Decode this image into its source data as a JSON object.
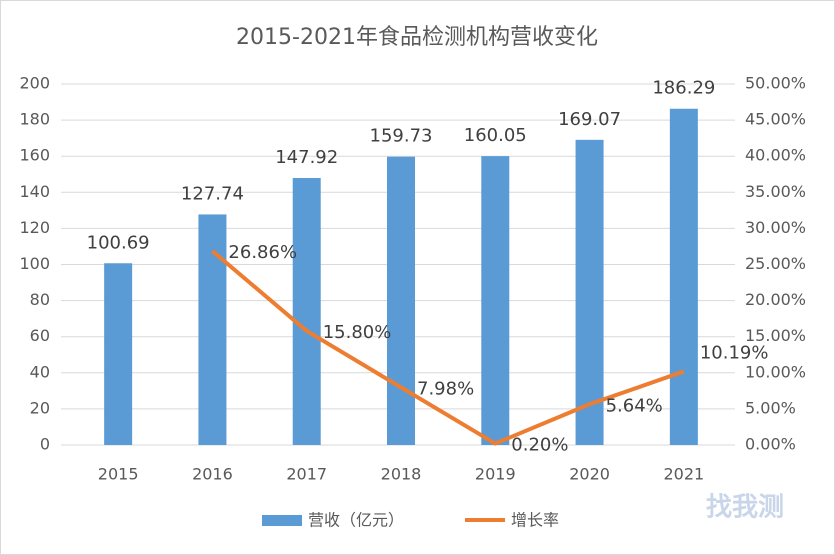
{
  "chart_data": {
    "type": "bar-line",
    "title": "2015-2021年食品检测机构营收变化",
    "categories": [
      "2015",
      "2016",
      "2017",
      "2018",
      "2019",
      "2020",
      "2021"
    ],
    "series": [
      {
        "name": "营收（亿元）",
        "color": "#5b9bd5",
        "type": "bar",
        "values": [
          100.69,
          127.74,
          147.92,
          159.73,
          160.05,
          169.07,
          186.29
        ]
      },
      {
        "name": "增长率",
        "color": "#ed7d31",
        "type": "line",
        "axis": "y2",
        "values": [
          null,
          26.86,
          15.8,
          7.98,
          0.2,
          5.64,
          10.19
        ],
        "value_labels": [
          null,
          "26.86%",
          "15.80%",
          "7.98%",
          "0.20%",
          "5.64%",
          "10.19%"
        ]
      }
    ],
    "ylim": [
      0,
      200
    ],
    "yticks": [
      0,
      20,
      40,
      60,
      80,
      100,
      120,
      140,
      160,
      180,
      200
    ],
    "y2lim": [
      0,
      50
    ],
    "y2ticks": [
      {
        "value": 0,
        "label": "0.00%"
      },
      {
        "value": 5,
        "label": "5.00%"
      },
      {
        "value": 10,
        "label": "10.00%"
      },
      {
        "value": 15,
        "label": "15.00%"
      },
      {
        "value": 20,
        "label": "20.00%"
      },
      {
        "value": 25,
        "label": "25.00%"
      },
      {
        "value": 30,
        "label": "30.00%"
      },
      {
        "value": 35,
        "label": "35.00%"
      },
      {
        "value": 40,
        "label": "40.00%"
      },
      {
        "value": 45,
        "label": "45.00%"
      },
      {
        "value": 50,
        "label": "50.00%"
      }
    ],
    "grid": true,
    "legend": "bottom",
    "watermark": "找我测"
  }
}
